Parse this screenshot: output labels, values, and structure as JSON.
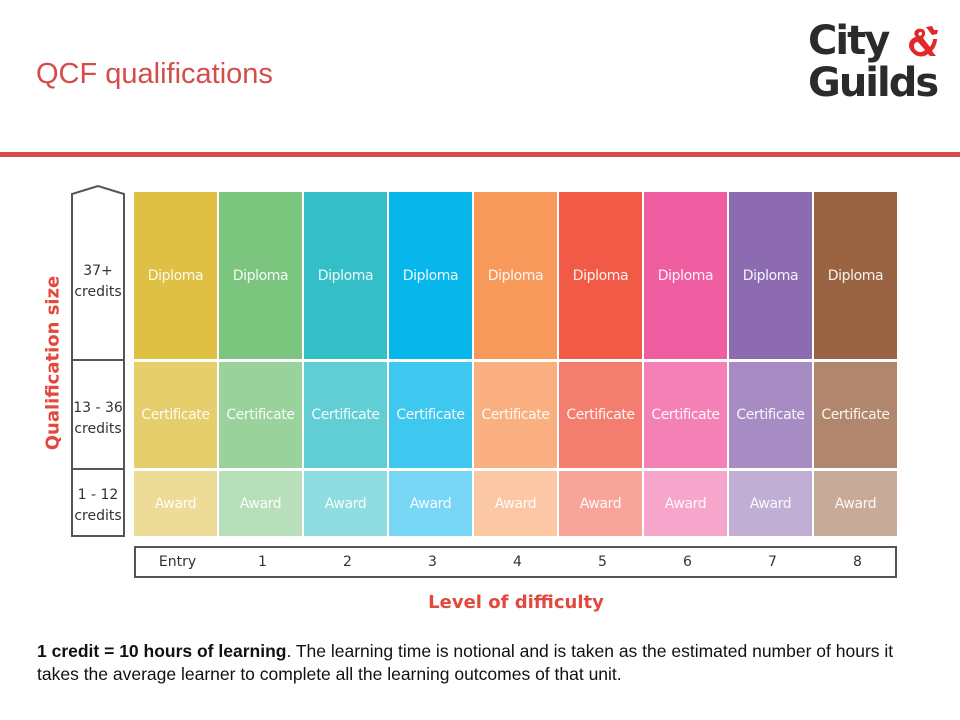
{
  "slide": {
    "title": "QCF qualifications"
  },
  "logo": {
    "line1": "City",
    "line2": "Guilds"
  },
  "colors": {
    "accent": "#d34e4a",
    "axis_title": "#e2483b",
    "level_columns": [
      "#dfc043",
      "#7cc57f",
      "#34bfc8",
      "#07b7eb",
      "#f7995b",
      "#f05a46",
      "#ef5ea0",
      "#8d6bb1",
      "#9a6443"
    ],
    "row_lightening": [
      0,
      0.22,
      0.45
    ]
  },
  "chart_data": {
    "type": "table",
    "x_axis_title": "Level of difficulty",
    "y_axis_title": "Qualification size",
    "levels": [
      "Entry",
      "1",
      "2",
      "3",
      "4",
      "5",
      "6",
      "7",
      "8"
    ],
    "sizes": [
      {
        "credits": [
          "37+",
          "credits"
        ],
        "qualification": "Diploma"
      },
      {
        "credits": [
          "13 - 36",
          "credits"
        ],
        "qualification": "Certificate"
      },
      {
        "credits": [
          "1 - 12",
          "credits"
        ],
        "qualification": "Award"
      }
    ]
  },
  "footnote": {
    "bold": "1 credit = 10 hours of learning",
    "text": ". The learning time is notional and is taken as the estimated number of hours it takes the average learner to complete all the learning outcomes of that unit."
  }
}
